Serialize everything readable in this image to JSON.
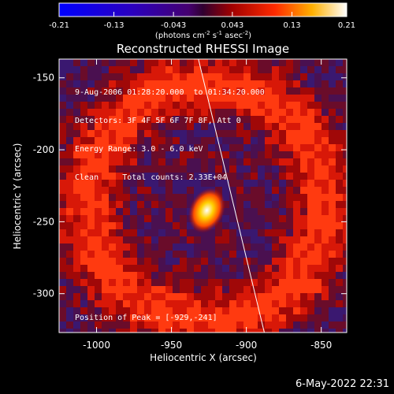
{
  "colorbar": {
    "ticks": [
      "-0.21",
      "-0.13",
      "-0.043",
      "0.043",
      "0.13",
      "0.21"
    ],
    "tick_values": [
      -0.21,
      -0.13,
      -0.043,
      0.043,
      0.13,
      0.21
    ],
    "units": "(photons cm",
    "units_exp1": "-2",
    "units_mid": " s",
    "units_exp2": "-1",
    "units_mid2": " asec",
    "units_exp3": "-2",
    "units_end": ")"
  },
  "chart_data": {
    "type": "heatmap",
    "title": "Reconstructed RHESSI Image",
    "xlabel": "Heliocentric X (arcsec)",
    "ylabel": "Heliocentric Y (arcsec)",
    "xlim": [
      -1025,
      -833
    ],
    "ylim": [
      -327,
      -137
    ],
    "x_ticks": [
      "-1000",
      "-950",
      "-900",
      "-850"
    ],
    "x_tick_values": [
      -1000,
      -950,
      -900,
      -850
    ],
    "y_ticks": [
      "-150",
      "-200",
      "-250",
      "-300"
    ],
    "y_tick_values": [
      -150,
      -200,
      -250,
      -300
    ],
    "value_range": [
      -0.21,
      0.21
    ],
    "colormap": "black-blue-purple-red-yellow-white",
    "peak": {
      "x": -929,
      "y": -241
    },
    "limb_line": [
      [
        -932,
        -137
      ],
      [
        -888,
        -327
      ]
    ],
    "annotations": {
      "time": "9-Aug-2006 01:28:20.000  to 01:34:20.000",
      "detectors": "Detectors: 3F 4F 5F 6F 7F 8F, Att 0",
      "energy": "Energy Range: 3.0 - 6.0 keV",
      "method": "Clean",
      "counts": "Total counts: 2.33E+04",
      "peak_label": "Position of Peak = [-929,-241]"
    }
  },
  "footer": {
    "timestamp": "6-May-2022 22:31"
  }
}
